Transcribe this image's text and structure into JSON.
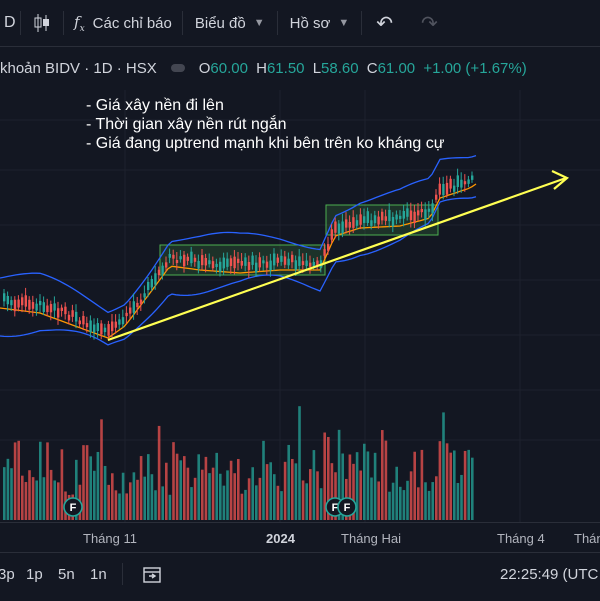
{
  "toolbar": {
    "indicators_label": "Các chỉ báo",
    "chart_label": "Biểu đồ",
    "profile_label": "Hồ sơ"
  },
  "legend": {
    "symbol": "khoản BIDV · 1D · HSX",
    "open_key": "O",
    "open": "60.00",
    "high_key": "H",
    "high": "61.50",
    "low_key": "L",
    "low": "58.60",
    "close_key": "C",
    "close": "61.00",
    "change": "+1.00 (+1.67%)"
  },
  "annotation": [
    "- Giá xây nền đi lên",
    "- Thời gian xây nền rút ngắn",
    "- Giá đang uptrend mạnh khi bên trên ko kháng cự"
  ],
  "colors": {
    "up": "#26a69a",
    "down": "#ef5350",
    "bb_band": "#2962ff",
    "ma": "#ff9800",
    "trend": "#ffff52",
    "box": "#4caf50"
  },
  "events": [
    "F",
    "F",
    "F"
  ],
  "xaxis": {
    "label_1": "Tháng 11",
    "label_2": "2024",
    "label_3": "Tháng Hai",
    "label_4": "Tháng 4",
    "label_5": "Tháng"
  },
  "bottom": {
    "range_1": "3p",
    "range_2": "1p",
    "range_3": "5n",
    "range_4": "1n",
    "clock": "22:25:49 (UTC"
  },
  "chart_data": {
    "type": "candlestick",
    "ohlc_last": {
      "open": 60.0,
      "high": 61.5,
      "low": 58.6,
      "close": 61.0
    }
  }
}
